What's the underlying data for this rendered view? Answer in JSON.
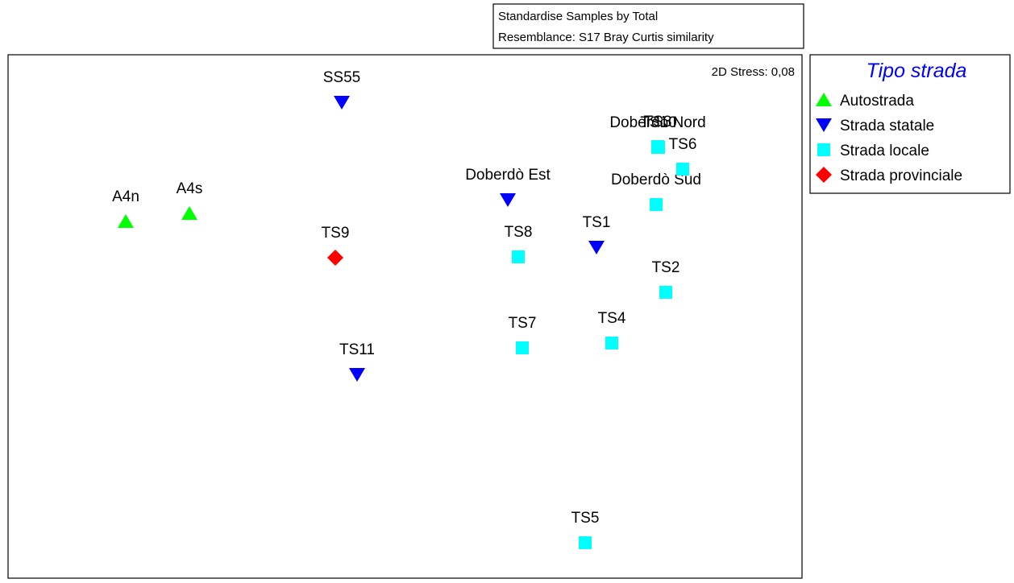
{
  "chart_data": {
    "type": "scatter",
    "notes_box": [
      "Standardise Samples by Total",
      "Resemblance: S17 Bray Curtis similarity"
    ],
    "stress": "2D Stress: 0,08",
    "legend_title": "Tipo strada",
    "legend_position": "right",
    "xlim": [
      0,
      985
    ],
    "ylim": [
      0,
      650
    ],
    "series": [
      {
        "name": "Autostrada",
        "color": "#00ff00",
        "marker": "triangle-up",
        "labels": [
          "A4n",
          "A4s"
        ],
        "x": [
          146,
          225
        ],
        "y": [
          443,
          453
        ]
      },
      {
        "name": "Strada statale",
        "color": "#0000ff",
        "marker": "triangle-down",
        "labels": [
          "SS55",
          "TS11",
          "Doberdò Est",
          "TS1"
        ],
        "x": [
          414,
          433,
          620,
          730
        ],
        "y": [
          591,
          253,
          470,
          411
        ]
      },
      {
        "name": "Strada locale",
        "color": "#00ffff",
        "marker": "square",
        "labels": [
          "TS8",
          "TS7",
          "TS4",
          "TS2",
          "TS5",
          "Doberdò Sud",
          "TS6",
          "Doberdò Nord",
          "TS3",
          "TS10"
        ],
        "x": [
          633,
          638,
          749,
          816,
          716,
          804,
          837,
          806,
          806,
          807
        ],
        "y": [
          399,
          286,
          292,
          355,
          44,
          464,
          508,
          535,
          536,
          535
        ]
      },
      {
        "name": "Strada provinciale",
        "color": "#ff0000",
        "marker": "diamond",
        "labels": [
          "TS9"
        ],
        "x": [
          406
        ],
        "y": [
          398
        ]
      }
    ]
  }
}
